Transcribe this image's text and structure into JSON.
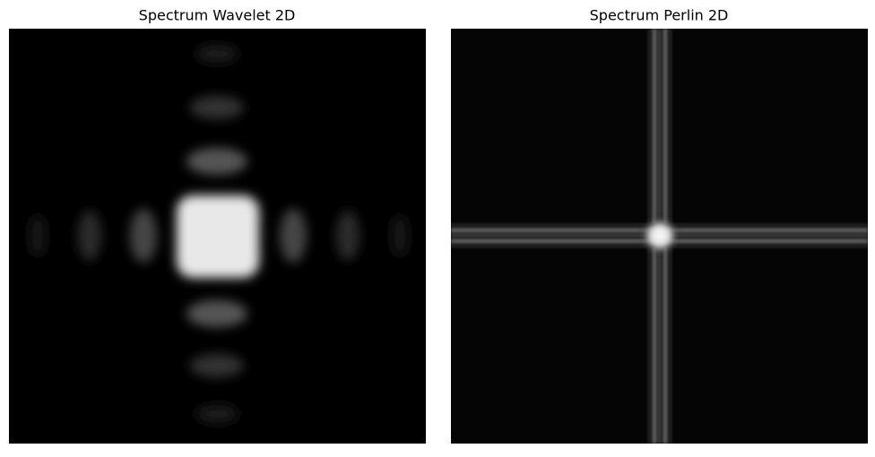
{
  "panels": [
    {
      "title": "Spectrum Wavelet 2D"
    },
    {
      "title": "Spectrum Perlin 2D"
    }
  ]
}
